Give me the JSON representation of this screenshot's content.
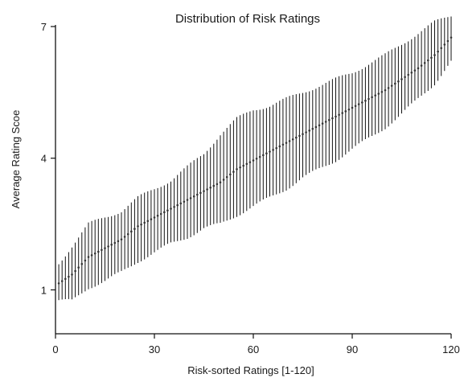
{
  "chart_data": {
    "type": "scatter",
    "title": "Distribution of Risk Ratings",
    "xlabel": "Risk-sorted Ratings [1-120]",
    "ylabel": "Average Rating Scoe",
    "xlim": [
      0,
      120
    ],
    "ylim": [
      0,
      7
    ],
    "xticks": [
      0,
      30,
      60,
      90,
      120
    ],
    "yticks": [
      1,
      4,
      7
    ],
    "grid": false,
    "legend": "none",
    "error_bars": true,
    "marker_color": "#333333",
    "bar_color": "#111111",
    "anchors": [
      {
        "x": 1,
        "mean": 1.15,
        "low": 0.75,
        "high": 1.6
      },
      {
        "x": 5,
        "mean": 1.35,
        "low": 0.75,
        "high": 2.0
      },
      {
        "x": 10,
        "mean": 1.75,
        "low": 1.05,
        "high": 2.5
      },
      {
        "x": 15,
        "mean": 1.95,
        "low": 1.2,
        "high": 2.65
      },
      {
        "x": 20,
        "mean": 2.15,
        "low": 1.4,
        "high": 2.8
      },
      {
        "x": 25,
        "mean": 2.45,
        "low": 1.65,
        "high": 3.1
      },
      {
        "x": 30,
        "mean": 2.65,
        "low": 1.85,
        "high": 3.3
      },
      {
        "x": 35,
        "mean": 2.85,
        "low": 2.05,
        "high": 3.5
      },
      {
        "x": 40,
        "mean": 3.05,
        "low": 2.2,
        "high": 3.8
      },
      {
        "x": 45,
        "mean": 3.25,
        "low": 2.4,
        "high": 4.1
      },
      {
        "x": 50,
        "mean": 3.45,
        "low": 2.5,
        "high": 4.55
      },
      {
        "x": 55,
        "mean": 3.75,
        "low": 2.7,
        "high": 4.9
      },
      {
        "x": 60,
        "mean": 3.95,
        "low": 2.9,
        "high": 5.1
      },
      {
        "x": 65,
        "mean": 4.15,
        "low": 3.1,
        "high": 5.2
      },
      {
        "x": 70,
        "mean": 4.35,
        "low": 3.3,
        "high": 5.35
      },
      {
        "x": 75,
        "mean": 4.55,
        "low": 3.55,
        "high": 5.5
      },
      {
        "x": 80,
        "mean": 4.75,
        "low": 3.75,
        "high": 5.65
      },
      {
        "x": 85,
        "mean": 4.95,
        "low": 3.95,
        "high": 5.8
      },
      {
        "x": 90,
        "mean": 5.15,
        "low": 4.2,
        "high": 5.95
      },
      {
        "x": 95,
        "mean": 5.35,
        "low": 4.45,
        "high": 6.15
      },
      {
        "x": 100,
        "mean": 5.55,
        "low": 4.7,
        "high": 6.35
      },
      {
        "x": 105,
        "mean": 5.8,
        "low": 5.0,
        "high": 6.6
      },
      {
        "x": 110,
        "mean": 6.05,
        "low": 5.35,
        "high": 6.85
      },
      {
        "x": 115,
        "mean": 6.35,
        "low": 5.7,
        "high": 7.1
      },
      {
        "x": 120,
        "mean": 6.75,
        "low": 6.2,
        "high": 7.25
      }
    ]
  }
}
